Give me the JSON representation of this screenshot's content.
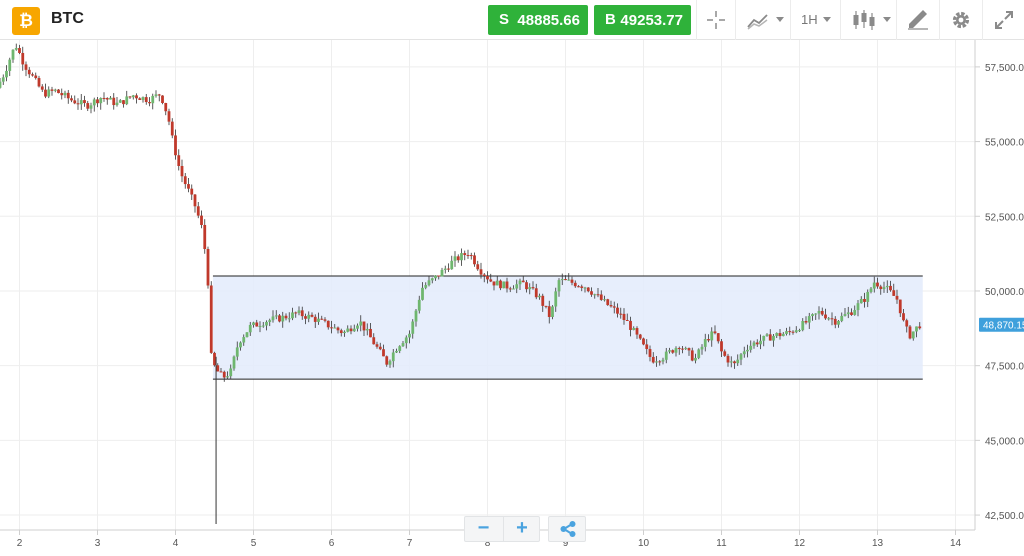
{
  "header": {
    "logo_glyph": "₿",
    "logo_color": "#f7a600",
    "symbol": "BTC",
    "sell": {
      "letter": "S",
      "price": "48885.66"
    },
    "buy": {
      "letter": "B",
      "price": "49253.77"
    },
    "trade_color": "#2fb23a",
    "tools": [
      {
        "name": "crosshair-icon"
      },
      {
        "name": "chart-type-icon"
      },
      {
        "name": "timeframe",
        "label": "1H"
      },
      {
        "name": "candles-icon"
      },
      {
        "name": "drawing-icon"
      },
      {
        "name": "gear-icon"
      },
      {
        "name": "fullscreen-icon"
      }
    ]
  },
  "controls": {
    "zoom_out": "−",
    "zoom_in": "+",
    "share_icon": "share-icon"
  },
  "chart_data": {
    "type": "candlestick",
    "title": "",
    "xlabel": "",
    "ylabel": "",
    "x_ticks": [
      "2",
      "3",
      "4",
      "5",
      "6",
      "7",
      "8",
      "9",
      "10",
      "11",
      "12",
      "13",
      "14"
    ],
    "x_range": [
      1.75,
      14.25
    ],
    "y_ticks": [
      "42,500.00",
      "45,000.00",
      "47,500.00",
      "50,000.00",
      "52,500.00",
      "55,000.00",
      "57,500.00"
    ],
    "y_tick_values": [
      42500,
      45000,
      47500,
      50000,
      52500,
      55000,
      57500
    ],
    "ylim": [
      42000,
      58400
    ],
    "last_price": "48,870.15",
    "last_price_value": 48870.15,
    "grid": true,
    "up_color": "#6fb66f",
    "down_color": "#c0392b",
    "channel": {
      "upper": 50500,
      "lower": 47050,
      "x_start": 4.48,
      "x_end": 13.58,
      "fill": "#e3ebfb"
    },
    "price_path": [
      [
        1.75,
        56800
      ],
      [
        1.85,
        57300
      ],
      [
        1.95,
        58000
      ],
      [
        2.0,
        58200
      ],
      [
        2.1,
        57600
      ],
      [
        2.2,
        57200
      ],
      [
        2.35,
        56600
      ],
      [
        2.5,
        56700
      ],
      [
        2.7,
        56400
      ],
      [
        2.9,
        56200
      ],
      [
        3.1,
        56500
      ],
      [
        3.3,
        56250
      ],
      [
        3.5,
        56550
      ],
      [
        3.7,
        56400
      ],
      [
        3.85,
        56600
      ],
      [
        3.95,
        55800
      ],
      [
        4.0,
        55100
      ],
      [
        4.1,
        54000
      ],
      [
        4.2,
        53400
      ],
      [
        4.3,
        52800
      ],
      [
        4.38,
        52100
      ],
      [
        4.45,
        50800
      ],
      [
        4.5,
        47800
      ],
      [
        4.55,
        47400
      ],
      [
        4.65,
        47100
      ],
      [
        4.75,
        47300
      ],
      [
        4.85,
        48300
      ],
      [
        5.0,
        48800
      ],
      [
        5.2,
        49000
      ],
      [
        5.4,
        49100
      ],
      [
        5.6,
        49250
      ],
      [
        5.8,
        49100
      ],
      [
        6.0,
        48850
      ],
      [
        6.2,
        48600
      ],
      [
        6.4,
        49000
      ],
      [
        6.6,
        48200
      ],
      [
        6.75,
        47600
      ],
      [
        6.9,
        48200
      ],
      [
        7.05,
        48600
      ],
      [
        7.2,
        50100
      ],
      [
        7.4,
        50500
      ],
      [
        7.6,
        51000
      ],
      [
        7.8,
        51300
      ],
      [
        7.95,
        50700
      ],
      [
        8.1,
        50300
      ],
      [
        8.3,
        50150
      ],
      [
        8.5,
        50250
      ],
      [
        8.7,
        49800
      ],
      [
        8.85,
        49100
      ],
      [
        8.95,
        50350
      ],
      [
        9.1,
        50300
      ],
      [
        9.3,
        50150
      ],
      [
        9.5,
        49700
      ],
      [
        9.7,
        49300
      ],
      [
        9.85,
        48900
      ],
      [
        10.0,
        48300
      ],
      [
        10.15,
        47700
      ],
      [
        10.3,
        47800
      ],
      [
        10.5,
        48200
      ],
      [
        10.7,
        47700
      ],
      [
        10.85,
        48400
      ],
      [
        10.95,
        48600
      ],
      [
        11.05,
        47900
      ],
      [
        11.2,
        47500
      ],
      [
        11.35,
        48100
      ],
      [
        11.5,
        48300
      ],
      [
        11.7,
        48500
      ],
      [
        11.9,
        48600
      ],
      [
        12.1,
        48900
      ],
      [
        12.3,
        49300
      ],
      [
        12.5,
        49000
      ],
      [
        12.7,
        49300
      ],
      [
        12.9,
        49800
      ],
      [
        13.0,
        50300
      ],
      [
        13.15,
        50100
      ],
      [
        13.3,
        49700
      ],
      [
        13.38,
        48900
      ],
      [
        13.45,
        48500
      ],
      [
        13.58,
        48870
      ]
    ]
  }
}
